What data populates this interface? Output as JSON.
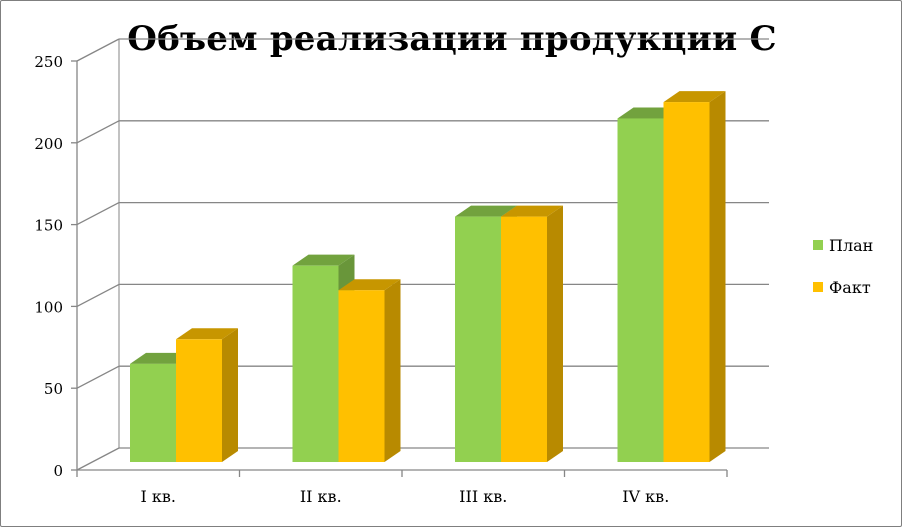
{
  "chart_data": {
    "type": "bar",
    "title": "Объем реализации продукции С",
    "categories": [
      "I кв.",
      "II кв.",
      "III кв.",
      "IV кв."
    ],
    "series": [
      {
        "name": "План",
        "values": [
          60,
          120,
          150,
          210
        ],
        "color": "#92d050"
      },
      {
        "name": "Факт",
        "values": [
          75,
          105,
          150,
          220
        ],
        "color": "#ffc000"
      }
    ],
    "ylim": [
      0,
      250
    ],
    "yticks": [
      "0",
      "50",
      "100",
      "150",
      "200",
      "250"
    ],
    "grid": true,
    "legend_position": "right",
    "style": "3d-clustered-column"
  }
}
